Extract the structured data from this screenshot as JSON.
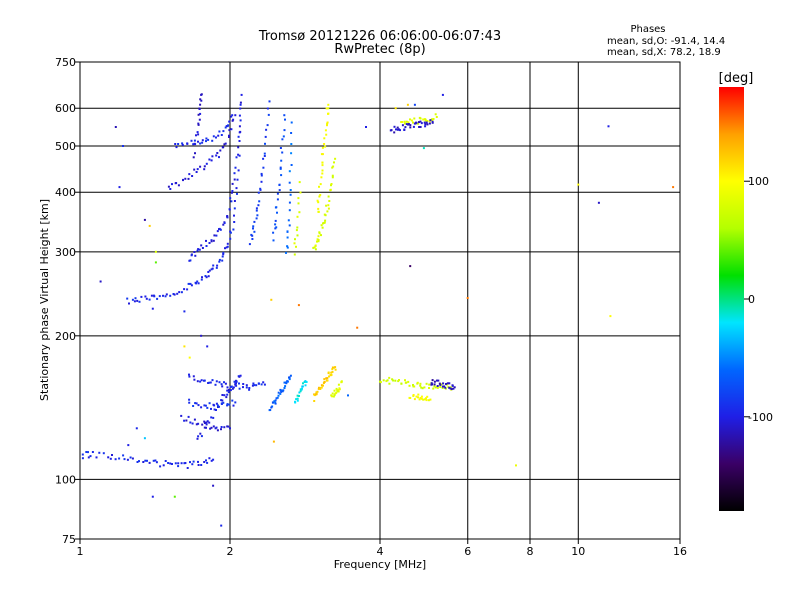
{
  "chart_data": {
    "type": "scatter",
    "title": "Tromsø 20121226 06:06:00-06:07:43",
    "subtitle": "RwPretec (8p)",
    "xlabel": "Frequency [MHz]",
    "ylabel": "Stationary phase Virtual Height [km]",
    "xscale": "log",
    "yscale": "log",
    "xlim": [
      1,
      16
    ],
    "ylim": [
      75,
      750
    ],
    "grid": true,
    "xticks": [
      1,
      2,
      4,
      6,
      8,
      10,
      16
    ],
    "xtick_labels": [
      "1",
      "2",
      "4",
      "6",
      "8",
      "10",
      "16"
    ],
    "yticks": [
      75,
      100,
      200,
      300,
      400,
      500,
      600,
      750
    ],
    "ytick_labels": [
      "75",
      "100",
      "200",
      "300",
      "400",
      "500",
      "600",
      "750"
    ],
    "color_var": "phase",
    "stats": {
      "header": "Phases",
      "line_o": "mean, sd,O: -91.4, 14.4",
      "line_x": "mean, sd,X: 78.2, 18.9"
    },
    "colorbar": {
      "unit": "[deg]",
      "range": [
        -180,
        180
      ],
      "ticks": [
        100,
        0,
        -100
      ],
      "tick_labels": [
        "100",
        "0",
        "-100"
      ],
      "colors": [
        "#000000",
        "#3a0066",
        "#1f1fe6",
        "#0066ff",
        "#00e5ff",
        "#00e000",
        "#b4ff00",
        "#ffff00",
        "#ffa000",
        "#ff0000"
      ]
    },
    "series": [
      {
        "traces": [
          {
            "f": [
              1.25,
              1.32,
              1.4,
              1.5,
              1.6,
              1.7,
              1.78,
              1.85,
              1.92,
              1.98,
              2.03,
              2.07,
              2.1
            ],
            "h": [
              237,
              238,
              240,
              244,
              250,
              258,
              265,
              275,
              290,
              310,
              345,
              420,
              610
            ],
            "phase": -95
          },
          {
            "f": [
              1.65,
              1.72,
              1.8,
              1.88,
              1.95,
              2.0,
              2.04,
              2.08,
              2.11
            ],
            "h": [
              290,
              300,
              312,
              325,
              345,
              370,
              420,
              520,
              640
            ],
            "phase": -100
          },
          {
            "f": [
              1.5,
              1.6,
              1.7,
              1.8,
              1.9,
              1.98,
              2.05
            ],
            "h": [
              410,
              420,
              440,
              460,
              480,
              520,
              580
            ],
            "phase": -105
          },
          {
            "f": [
              1.7,
              1.72,
              1.74,
              1.75
            ],
            "h": [
              480,
              540,
              600,
              640
            ],
            "phase": -110
          },
          {
            "f": [
              1.55,
              1.65,
              1.75,
              1.85,
              1.95,
              2.02
            ],
            "h": [
              500,
              505,
              512,
              522,
              540,
              580
            ],
            "phase": -95
          },
          {
            "f": [
              2.2,
              2.24,
              2.28,
              2.32,
              2.36,
              2.4
            ],
            "h": [
              310,
              340,
              380,
              430,
              500,
              620
            ],
            "phase": -85
          },
          {
            "f": [
              2.45,
              2.48,
              2.51,
              2.54,
              2.57
            ],
            "h": [
              320,
              360,
              410,
              480,
              580
            ],
            "phase": -75
          },
          {
            "f": [
              2.6,
              2.62,
              2.64,
              2.66
            ],
            "h": [
              300,
              340,
              420,
              560
            ],
            "phase": -60
          },
          {
            "f": [
              2.7,
              2.73,
              2.76
            ],
            "h": [
              300,
              340,
              420
            ],
            "phase": 80
          },
          {
            "f": [
              2.95,
              3.0,
              3.05,
              3.1,
              3.15,
              3.2,
              3.25
            ],
            "h": [
              305,
              315,
              330,
              350,
              380,
              420,
              470
            ],
            "phase": 80
          },
          {
            "f": [
              3.0,
              3.03,
              3.06,
              3.09,
              3.12,
              3.15
            ],
            "h": [
              360,
              400,
              450,
              500,
              560,
              610
            ],
            "phase": 95
          },
          {
            "f": [
              1.0,
              1.05,
              1.15,
              1.25,
              1.35,
              1.45,
              1.55,
              1.65,
              1.75,
              1.85
            ],
            "h": [
              112,
              113,
              112,
              110,
              109,
              108,
              107,
              107,
              108,
              110
            ],
            "phase": -95
          },
          {
            "f": [
              1.72,
              1.8,
              1.88,
              1.95,
              2.0,
              2.05,
              2.1
            ],
            "h": [
              120,
              130,
              140,
              150,
              155,
              160,
              165
            ],
            "phase": -100
          },
          {
            "f": [
              1.65,
              1.75,
              1.85,
              1.95,
              2.05,
              2.15,
              2.25,
              2.35
            ],
            "h": [
              165,
              162,
              160,
              158,
              157,
              156,
              157,
              158
            ],
            "phase": -95
          },
          {
            "f": [
              1.65,
              1.75,
              1.85,
              1.95,
              2.05
            ],
            "h": [
              145,
              143,
              142,
              143,
              145
            ],
            "phase": -90
          },
          {
            "f": [
              1.6,
              1.7,
              1.8,
              1.9,
              2.0
            ],
            "h": [
              135,
              132,
              130,
              128,
              128
            ],
            "phase": -105
          },
          {
            "f": [
              2.4,
              2.45,
              2.5,
              2.55,
              2.6,
              2.65
            ],
            "h": [
              140,
              145,
              150,
              155,
              160,
              165
            ],
            "phase": -65
          },
          {
            "f": [
              2.7,
              2.75,
              2.8,
              2.85
            ],
            "h": [
              145,
              150,
              155,
              160
            ],
            "phase": -20
          },
          {
            "f": [
              2.95,
              3.0,
              3.05,
              3.1,
              3.15,
              3.2,
              3.25
            ],
            "h": [
              148,
              152,
              156,
              160,
              164,
              168,
              172
            ],
            "phase": 120
          },
          {
            "f": [
              3.2,
              3.25,
              3.3,
              3.35
            ],
            "h": [
              150,
              152,
              155,
              160
            ],
            "phase": 85
          },
          {
            "f": [
              4.0,
              4.2,
              4.4,
              4.6,
              4.8,
              5.0,
              5.2,
              5.4,
              5.55
            ],
            "h": [
              162,
              161,
              160,
              159,
              158,
              157,
              157,
              157,
              156
            ],
            "phase": 75
          },
          {
            "f": [
              4.6,
              4.75,
              4.9,
              5.05
            ],
            "h": [
              150,
              149,
              148,
              147
            ],
            "phase": 95
          },
          {
            "f": [
              5.05,
              5.2,
              5.35,
              5.5,
              5.65
            ],
            "h": [
              160,
              159,
              158,
              157,
              156
            ],
            "phase": -115
          },
          {
            "f": [
              4.4,
              4.6,
              4.8,
              5.0,
              5.2
            ],
            "h": [
              560,
              562,
              565,
              570,
              575
            ],
            "phase": 85
          },
          {
            "f": [
              4.2,
              4.35,
              4.5,
              4.65,
              4.8,
              4.95,
              5.1
            ],
            "h": [
              540,
              545,
              548,
              552,
              555,
              558,
              562
            ],
            "phase": -110
          }
        ]
      }
    ],
    "points": [
      {
        "f": 1.1,
        "h": 260,
        "phase": -110
      },
      {
        "f": 1.18,
        "h": 548,
        "phase": -115
      },
      {
        "f": 1.22,
        "h": 500,
        "phase": -90
      },
      {
        "f": 1.2,
        "h": 410,
        "phase": -100
      },
      {
        "f": 1.35,
        "h": 350,
        "phase": -120
      },
      {
        "f": 1.38,
        "h": 340,
        "phase": 120
      },
      {
        "f": 1.42,
        "h": 300,
        "phase": 80
      },
      {
        "f": 1.42,
        "h": 285,
        "phase": 40
      },
      {
        "f": 1.4,
        "h": 228,
        "phase": -100
      },
      {
        "f": 1.62,
        "h": 225,
        "phase": -95
      },
      {
        "f": 1.75,
        "h": 200,
        "phase": -110
      },
      {
        "f": 1.8,
        "h": 190,
        "phase": -100
      },
      {
        "f": 1.62,
        "h": 190,
        "phase": 110
      },
      {
        "f": 1.66,
        "h": 180,
        "phase": 100
      },
      {
        "f": 1.3,
        "h": 128,
        "phase": -95
      },
      {
        "f": 1.35,
        "h": 122,
        "phase": -30
      },
      {
        "f": 1.25,
        "h": 118,
        "phase": -100
      },
      {
        "f": 1.4,
        "h": 92,
        "phase": -100
      },
      {
        "f": 1.55,
        "h": 92,
        "phase": 40
      },
      {
        "f": 1.85,
        "h": 97,
        "phase": -110
      },
      {
        "f": 1.92,
        "h": 80,
        "phase": -95
      },
      {
        "f": 2.42,
        "h": 238,
        "phase": 120
      },
      {
        "f": 2.75,
        "h": 232,
        "phase": 150
      },
      {
        "f": 3.6,
        "h": 208,
        "phase": 150
      },
      {
        "f": 2.45,
        "h": 120,
        "phase": 130
      },
      {
        "f": 3.45,
        "h": 150,
        "phase": -60
      },
      {
        "f": 3.75,
        "h": 548,
        "phase": -100
      },
      {
        "f": 4.3,
        "h": 600,
        "phase": 110
      },
      {
        "f": 4.55,
        "h": 610,
        "phase": 120
      },
      {
        "f": 4.7,
        "h": 610,
        "phase": -80
      },
      {
        "f": 4.9,
        "h": 495,
        "phase": -10
      },
      {
        "f": 5.35,
        "h": 640,
        "phase": -100
      },
      {
        "f": 4.6,
        "h": 280,
        "phase": -140
      },
      {
        "f": 6.0,
        "h": 240,
        "phase": 150
      },
      {
        "f": 7.5,
        "h": 107,
        "phase": 90
      },
      {
        "f": 10.0,
        "h": 415,
        "phase": 100
      },
      {
        "f": 11.0,
        "h": 380,
        "phase": -110
      },
      {
        "f": 11.5,
        "h": 550,
        "phase": -100
      },
      {
        "f": 11.6,
        "h": 220,
        "phase": 100
      },
      {
        "f": 15.5,
        "h": 410,
        "phase": 150
      }
    ]
  }
}
